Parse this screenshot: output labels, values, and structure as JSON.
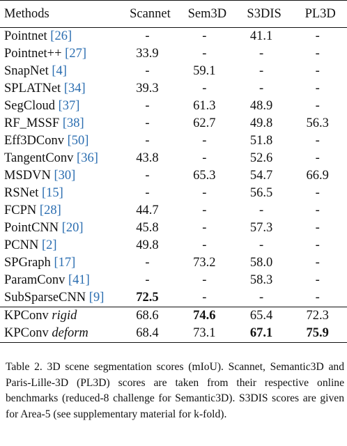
{
  "table": {
    "headers": [
      "Methods",
      "Scannet",
      "Sem3D",
      "S3DIS",
      "PL3D"
    ],
    "rows": [
      {
        "method": "Pointnet ",
        "cite": "[26]",
        "scannet": "-",
        "sem3d": "-",
        "s3dis": "41.1",
        "pl3d": "-"
      },
      {
        "method": "Pointnet++ ",
        "cite": "[27]",
        "scannet": "33.9",
        "sem3d": "-",
        "s3dis": "-",
        "pl3d": "-"
      },
      {
        "method": "SnapNet ",
        "cite": "[4]",
        "scannet": "-",
        "sem3d": "59.1",
        "s3dis": "-",
        "pl3d": "-"
      },
      {
        "method": "SPLATNet ",
        "cite": "[34]",
        "scannet": "39.3",
        "sem3d": "-",
        "s3dis": "-",
        "pl3d": "-"
      },
      {
        "method": "SegCloud ",
        "cite": "[37]",
        "scannet": "-",
        "sem3d": "61.3",
        "s3dis": "48.9",
        "pl3d": "-"
      },
      {
        "method": "RF_MSSF ",
        "cite": "[38]",
        "scannet": "-",
        "sem3d": "62.7",
        "s3dis": "49.8",
        "pl3d": "56.3"
      },
      {
        "method": "Eff3DConv ",
        "cite": "[50]",
        "scannet": "-",
        "sem3d": "-",
        "s3dis": "51.8",
        "pl3d": "-"
      },
      {
        "method": "TangentConv ",
        "cite": "[36]",
        "scannet": "43.8",
        "sem3d": "-",
        "s3dis": "52.6",
        "pl3d": "-"
      },
      {
        "method": "MSDVN ",
        "cite": "[30]",
        "scannet": "-",
        "sem3d": "65.3",
        "s3dis": "54.7",
        "pl3d": "66.9"
      },
      {
        "method": "RSNet ",
        "cite": "[15]",
        "scannet": "-",
        "sem3d": "-",
        "s3dis": "56.5",
        "pl3d": "-"
      },
      {
        "method": "FCPN ",
        "cite": "[28]",
        "scannet": "44.7",
        "sem3d": "-",
        "s3dis": "-",
        "pl3d": "-"
      },
      {
        "method": "PointCNN ",
        "cite": "[20]",
        "scannet": "45.8",
        "sem3d": "-",
        "s3dis": "57.3",
        "pl3d": "-"
      },
      {
        "method": "PCNN ",
        "cite": "[2]",
        "scannet": "49.8",
        "sem3d": "-",
        "s3dis": "-",
        "pl3d": "-"
      },
      {
        "method": "SPGraph ",
        "cite": "[17]",
        "scannet": "-",
        "sem3d": "73.2",
        "s3dis": "58.0",
        "pl3d": "-"
      },
      {
        "method": "ParamConv ",
        "cite": "[41]",
        "scannet": "-",
        "sem3d": "-",
        "s3dis": "58.3",
        "pl3d": "-"
      },
      {
        "method": "SubSparseCNN ",
        "cite": "[9]",
        "scannet": "72.5",
        "sem3d": "-",
        "s3dis": "-",
        "pl3d": "-"
      }
    ],
    "kpconv": [
      {
        "name": "KPConv ",
        "variant": "rigid",
        "scannet": "68.6",
        "sem3d": "74.6",
        "s3dis": "65.4",
        "pl3d": "72.3"
      },
      {
        "name": "KPConv ",
        "variant": "deform",
        "scannet": "68.4",
        "sem3d": "73.1",
        "s3dis": "67.1",
        "pl3d": "75.9"
      }
    ]
  },
  "caption": "Table 2. 3D scene segmentation scores (mIoU). Scannet, Semantic3D and Paris-Lille-3D (PL3D) scores are taken from their respective online benchmarks (reduced-8 challenge for Semantic3D). S3DIS scores are given for Area-5 (see supplementary material for k-fold)."
}
